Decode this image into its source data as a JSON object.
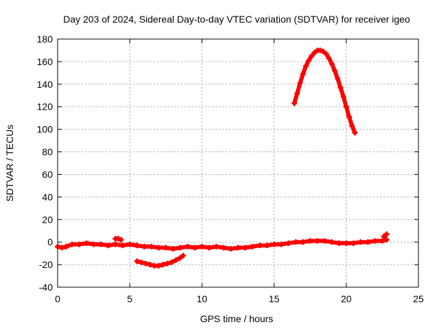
{
  "chart_data": {
    "type": "scatter",
    "title": "Day 203 of 2024, Sidereal Day-to-day VTEC variation (SDTVAR) for receiver igeo",
    "xlabel": "GPS time / hours",
    "ylabel": "SDTVAR / TECUs",
    "xlim": [
      0,
      25
    ],
    "ylim": [
      -40,
      180
    ],
    "xticks": [
      0,
      5,
      10,
      15,
      20,
      25
    ],
    "yticks": [
      -40,
      -20,
      0,
      20,
      40,
      60,
      80,
      100,
      120,
      140,
      160,
      180
    ],
    "grid": true,
    "marker": "plus",
    "color": "#ff0000",
    "series": [
      {
        "x": [
          0.0,
          0.3,
          0.6,
          1.0,
          1.5,
          2.0,
          2.5,
          3.0,
          3.5,
          4.0,
          4.5,
          5.0,
          5.5,
          6.0,
          6.5,
          7.0,
          7.5,
          8.0,
          8.5,
          9.0,
          9.5,
          10.0,
          10.5,
          11.0,
          11.5,
          12.0,
          12.5,
          13.0,
          13.5,
          14.0,
          14.5,
          15.0,
          15.5,
          16.0,
          16.5,
          17.0,
          17.5,
          18.0,
          18.5,
          19.0,
          19.5,
          20.0,
          20.5,
          21.0,
          21.5,
          22.0,
          22.5,
          22.8
        ],
        "y": [
          -4,
          -5,
          -4,
          -2,
          -2,
          -1,
          -2,
          -2,
          -3,
          -2,
          -3,
          -2,
          -3,
          -4,
          -4,
          -5,
          -5,
          -6,
          -5,
          -4,
          -5,
          -4,
          -5,
          -4,
          -5,
          -6,
          -5,
          -5,
          -4,
          -3,
          -3,
          -2,
          -2,
          -1,
          0,
          0,
          1,
          1,
          1,
          0,
          -1,
          -1,
          -1,
          0,
          0,
          1,
          1,
          2
        ]
      },
      {
        "x": [
          4.0,
          4.2,
          4.4
        ],
        "y": [
          3,
          3,
          2
        ]
      },
      {
        "x": [
          5.5,
          5.8,
          6.1,
          6.4,
          6.7,
          7.0,
          7.3,
          7.6,
          7.9,
          8.2,
          8.5,
          8.7
        ],
        "y": [
          -17,
          -18,
          -19,
          -20,
          -21,
          -21,
          -20,
          -19,
          -18,
          -16,
          -14,
          -12
        ]
      },
      {
        "x": [
          22.6,
          22.8
        ],
        "y": [
          5,
          7
        ]
      },
      {
        "x": [
          16.4,
          16.6,
          16.8,
          17.0,
          17.2,
          17.4,
          17.6,
          17.8,
          18.0,
          18.2,
          18.4,
          18.6,
          18.8,
          19.0,
          19.2,
          19.4,
          19.6,
          19.8,
          20.0,
          20.2,
          20.4,
          20.6
        ],
        "y": [
          123,
          132,
          141,
          149,
          156,
          161,
          165,
          168,
          170,
          170,
          169,
          167,
          163,
          158,
          152,
          145,
          137,
          129,
          120,
          111,
          103,
          97
        ]
      }
    ]
  }
}
